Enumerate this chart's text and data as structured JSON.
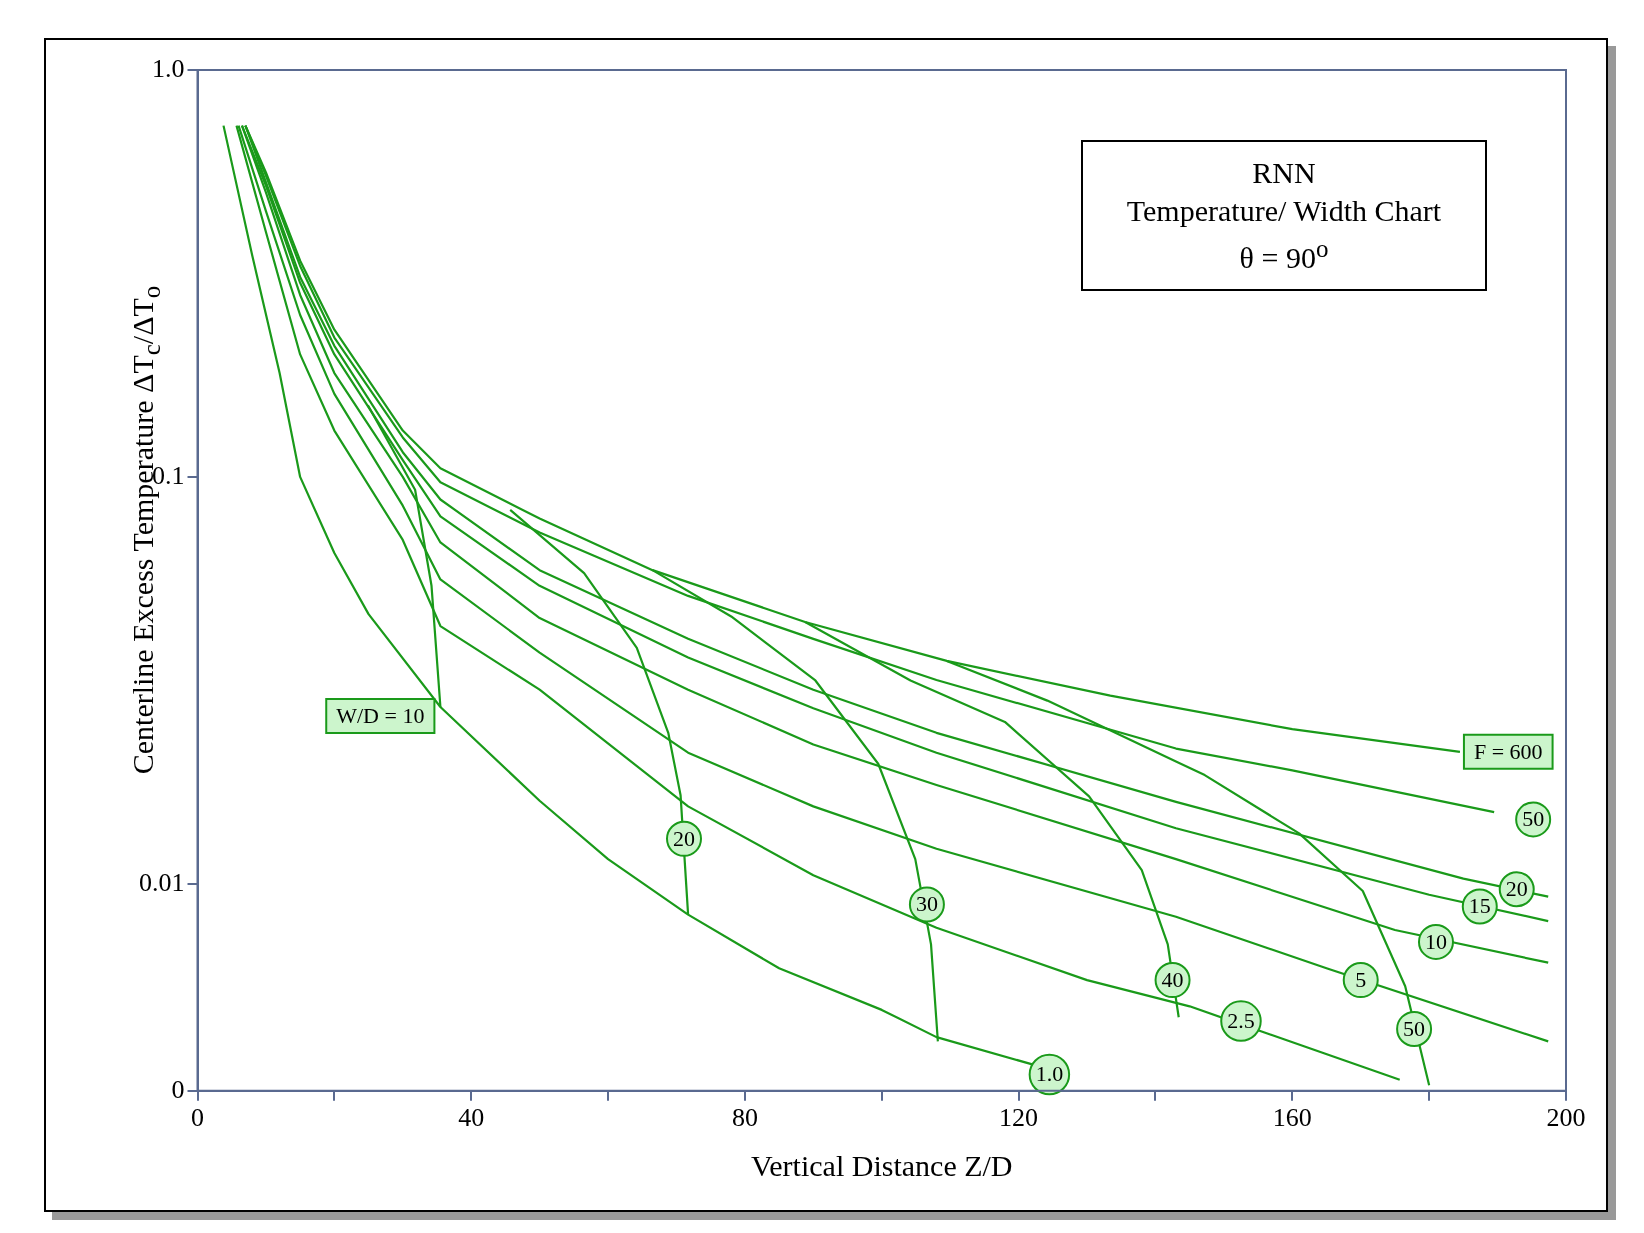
{
  "chart_data": {
    "type": "line",
    "title": "RNN",
    "subtitle": "Temperature/ Width Chart",
    "xlabel": "Vertical Distance Z/D",
    "ylabel": "Centerline Excess Temperature ΔT$_{c}$/ΔT$_{o}$",
    "log": "y",
    "grid": false,
    "legend": false,
    "marker": "none",
    "line_style": "solid",
    "xlim": [
      0,
      200
    ],
    "xticks": [
      0,
      {
        "value": 20,
        "label": null
      },
      40,
      {
        "value": 60,
        "label": null
      },
      80,
      {
        "value": 100,
        "label": null
      },
      120,
      {
        "value": 140,
        "label": null
      },
      160,
      {
        "value": 180,
        "label": null
      },
      200
    ],
    "ylim": [
      0.0031,
      1
    ],
    "yticks": [
      {
        "value": 0.0031,
        "label": "0"
      },
      0.01,
      0.1,
      {
        "value": 1,
        "label": "1.0"
      }
    ],
    "series": [
      {
        "color": "#1a9a1a",
        "x": [
          3.8,
          8,
          12,
          15,
          20,
          25,
          35.5,
          50,
          60,
          71.7,
          85,
          100,
          108,
          122
        ],
        "values": [
          0.73,
          0.35,
          0.18,
          0.1,
          0.065,
          0.046,
          0.0272,
          0.016,
          0.0115,
          0.0084,
          0.0062,
          0.0049,
          0.0042,
          0.0036
        ]
      },
      {
        "color": "#1a9a1a",
        "x": [
          5.7,
          10,
          15,
          20,
          30,
          35.5,
          50,
          71.7,
          90,
          108,
          130,
          145,
          175.7
        ],
        "values": [
          0.73,
          0.4,
          0.2,
          0.13,
          0.07,
          0.043,
          0.03,
          0.0155,
          0.0105,
          0.0078,
          0.0058,
          0.005,
          0.0033
        ]
      },
      {
        "color": "#1a9a1a",
        "x": [
          6,
          10,
          15,
          20,
          30,
          35.5,
          50,
          71.7,
          90,
          108,
          143,
          165,
          197.4
        ],
        "values": [
          0.73,
          0.45,
          0.25,
          0.16,
          0.085,
          0.056,
          0.037,
          0.021,
          0.0155,
          0.0122,
          0.0083,
          0.0062,
          0.0041
        ]
      },
      {
        "color": "#1a9a1a",
        "x": [
          6.5,
          10,
          15,
          20,
          30,
          35.5,
          50,
          71.7,
          90,
          108,
          143,
          175,
          197.4
        ],
        "values": [
          0.73,
          0.5,
          0.28,
          0.18,
          0.1,
          0.069,
          0.045,
          0.03,
          0.022,
          0.0175,
          0.0115,
          0.0077,
          0.0064
        ]
      },
      {
        "color": "#1a9a1a",
        "x": [
          6.5,
          10,
          15,
          20,
          30,
          35.5,
          50,
          71.7,
          90,
          108,
          143,
          180,
          197.4
        ],
        "values": [
          0.73,
          0.52,
          0.3,
          0.2,
          0.11,
          0.08,
          0.054,
          0.036,
          0.027,
          0.021,
          0.0137,
          0.0094,
          0.0081
        ]
      },
      {
        "color": "#1a9a1a",
        "x": [
          7,
          10,
          15,
          20,
          30,
          35.5,
          50,
          71.7,
          90,
          108,
          143,
          185,
          197.4
        ],
        "values": [
          0.73,
          0.53,
          0.31,
          0.21,
          0.115,
          0.088,
          0.059,
          0.04,
          0.03,
          0.0235,
          0.0159,
          0.0103,
          0.0093
        ]
      },
      {
        "color": "#1a9a1a",
        "x": [
          7,
          10,
          15,
          20,
          30,
          35.5,
          50,
          71.7,
          90,
          108,
          143,
          160,
          189.5
        ],
        "values": [
          0.73,
          0.55,
          0.33,
          0.22,
          0.125,
          0.097,
          0.073,
          0.051,
          0.04,
          0.0317,
          0.0215,
          0.019,
          0.015
        ]
      },
      {
        "name": "F = 600",
        "color": "#1a9a1a",
        "x": [
          7,
          10,
          15,
          20,
          30,
          35.5,
          50,
          66.5,
          88.8,
          109.5,
          133.4,
          160,
          184.5
        ],
        "values": [
          0.73,
          0.56,
          0.34,
          0.23,
          0.13,
          0.105,
          0.079,
          0.059,
          0.044,
          0.0353,
          0.029,
          0.024,
          0.0211
        ]
      },
      {
        "name": "W/D = 10",
        "color": "#1a9a1a",
        "x": [
          24.9,
          31.8,
          34.2,
          35.5
        ],
        "values": [
          0.15,
          0.093,
          0.054,
          0.0272
        ]
      },
      {
        "color": "#1a9a1a",
        "x": [
          45.7,
          56.5,
          64.2,
          68.8,
          70.6,
          71.7
        ],
        "values": [
          0.083,
          0.058,
          0.038,
          0.0235,
          0.0165,
          0.0084
        ]
      },
      {
        "color": "#1a9a1a",
        "x": [
          66.5,
          78,
          90.3,
          99.5,
          104.9,
          107.2,
          108.2
        ],
        "values": [
          0.059,
          0.0454,
          0.0316,
          0.0197,
          0.0115,
          0.0071,
          0.0041
        ]
      },
      {
        "color": "#1a9a1a",
        "x": [
          88.8,
          104.2,
          118,
          130.3,
          138,
          141.8,
          143.4
        ],
        "values": [
          0.044,
          0.0316,
          0.025,
          0.0164,
          0.0108,
          0.0071,
          0.0047
        ]
      },
      {
        "color": "#1a9a1a",
        "x": [
          109.5,
          124.2,
          147.2,
          161,
          170.3,
          176.5,
          180
        ],
        "values": [
          0.0353,
          0.0282,
          0.0185,
          0.0133,
          0.0096,
          0.0056,
          0.0032
        ]
      }
    ],
    "annotations": [
      "θ = 90$^{o}$",
      {
        "text": "1.0",
        "x": 124.5,
        "y": 0.0034
      },
      {
        "text": "2.5",
        "x": 152.5,
        "y": 0.0046
      },
      {
        "text": "5",
        "x": 170,
        "y": 0.0058
      },
      {
        "text": "10",
        "x": 181,
        "y": 0.0072
      },
      {
        "text": "15",
        "x": 187.4,
        "y": 0.0088
      },
      {
        "text": "20",
        "x": 192.8,
        "y": 0.0097
      },
      {
        "text": "50",
        "x": 195.2,
        "y": 0.0144
      },
      {
        "text": "20",
        "x": 71.1,
        "y": 0.0129
      },
      {
        "text": "30",
        "x": 106.6,
        "y": 0.0089
      },
      {
        "text": "40",
        "x": 142.5,
        "y": 0.0058
      },
      {
        "text": "50",
        "x": 177.8,
        "y": 0.0044
      }
    ]
  }
}
